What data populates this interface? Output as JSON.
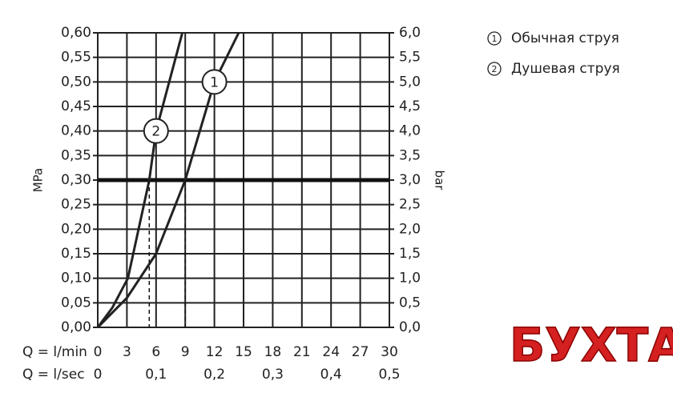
{
  "chart_data": {
    "type": "line",
    "x_label": "Q = l/min",
    "x2_label": "Q = l/sec",
    "y_label": "MPa",
    "y2_label": "bar",
    "xlim": [
      0,
      30
    ],
    "xticks": [
      0,
      3,
      6,
      9,
      12,
      15,
      18,
      21,
      24,
      27,
      30
    ],
    "x2lim": [
      0,
      0.5
    ],
    "x2ticks": [
      {
        "value": 0,
        "label": "0"
      },
      {
        "value": 0.1,
        "label": "0,1"
      },
      {
        "value": 0.2,
        "label": "0,2"
      },
      {
        "value": 0.3,
        "label": "0,3"
      },
      {
        "value": 0.4,
        "label": "0,4"
      },
      {
        "value": 0.5,
        "label": "0,5"
      }
    ],
    "ylim": [
      0,
      0.6
    ],
    "yticks": [
      {
        "value": 0,
        "label": "0,00"
      },
      {
        "value": 0.05,
        "label": "0,05"
      },
      {
        "value": 0.1,
        "label": "0,10"
      },
      {
        "value": 0.15,
        "label": "0,15"
      },
      {
        "value": 0.2,
        "label": "0,20"
      },
      {
        "value": 0.25,
        "label": "0,25"
      },
      {
        "value": 0.3,
        "label": "0,30"
      },
      {
        "value": 0.35,
        "label": "0,35"
      },
      {
        "value": 0.4,
        "label": "0,40"
      },
      {
        "value": 0.45,
        "label": "0,45"
      },
      {
        "value": 0.5,
        "label": "0,50"
      },
      {
        "value": 0.55,
        "label": "0,55"
      },
      {
        "value": 0.6,
        "label": "0,60"
      }
    ],
    "y2lim": [
      0,
      6
    ],
    "y2ticks": [
      {
        "value": 0,
        "label": "0,0"
      },
      {
        "value": 0.5,
        "label": "0,5"
      },
      {
        "value": 1,
        "label": "1,0"
      },
      {
        "value": 1.5,
        "label": "1,5"
      },
      {
        "value": 2,
        "label": "2,0"
      },
      {
        "value": 2.5,
        "label": "2,5"
      },
      {
        "value": 3,
        "label": "3,0"
      },
      {
        "value": 3.5,
        "label": "3,5"
      },
      {
        "value": 4,
        "label": "4,0"
      },
      {
        "value": 4.5,
        "label": "4,5"
      },
      {
        "value": 5,
        "label": "5,0"
      },
      {
        "value": 5.5,
        "label": "5,5"
      },
      {
        "value": 6,
        "label": "6,0"
      }
    ],
    "grid": true,
    "reference_line": 0.3,
    "series": [
      {
        "marker": "1",
        "name": "Обычная струя",
        "color": "#222222",
        "x": [
          0,
          3,
          6,
          9,
          12,
          14.5
        ],
        "values": [
          0,
          0.06,
          0.15,
          0.3,
          0.5,
          0.6
        ]
      },
      {
        "marker": "2",
        "name": "Душевая струя",
        "color": "#222222",
        "x": [
          0,
          1.5,
          3.1,
          5.3,
          6.0,
          8.7
        ],
        "values": [
          0,
          0.04,
          0.1,
          0.3,
          0.4,
          0.6
        ]
      }
    ],
    "watermark": "БУХТА"
  }
}
